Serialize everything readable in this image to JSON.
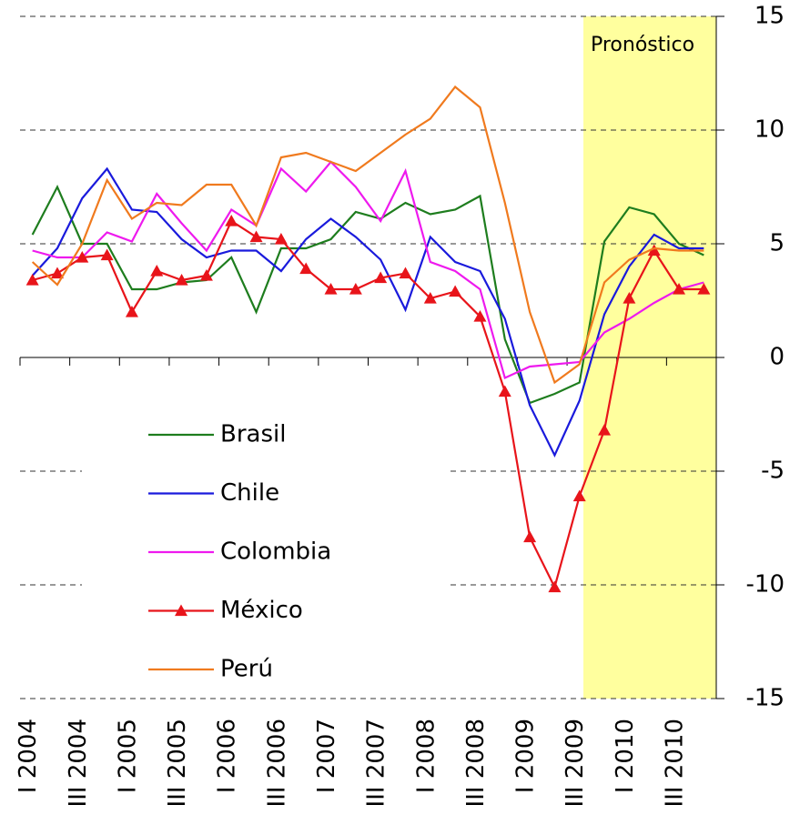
{
  "chart_data": {
    "type": "line",
    "annotations": [
      "Pronóstico"
    ],
    "categories": [
      "I 2004",
      null,
      "III 2004",
      null,
      "I 2005",
      null,
      "III 2005",
      null,
      "I 2006",
      null,
      "III 2006",
      null,
      "I 2007",
      null,
      "III 2007",
      null,
      "I 2008",
      null,
      "III 2008",
      null,
      "I 2009",
      null,
      "III 2009",
      null,
      "I 2010",
      null,
      "III 2010",
      null
    ],
    "series": [
      {
        "name": "Brasil",
        "color": "#1e7d1e",
        "values": [
          5.4,
          7.5,
          5.0,
          5.0,
          3.0,
          3.0,
          3.3,
          3.4,
          4.4,
          2.0,
          4.8,
          4.8,
          5.2,
          6.4,
          6.1,
          6.8,
          6.3,
          6.5,
          7.1,
          0.8,
          -2.0,
          -1.6,
          -1.1,
          5.1,
          6.6,
          6.3,
          5.0,
          4.5
        ]
      },
      {
        "name": "Chile",
        "color": "#1a1adc",
        "values": [
          3.6,
          4.8,
          7.0,
          8.3,
          6.5,
          6.4,
          5.2,
          4.4,
          4.7,
          4.7,
          3.8,
          5.2,
          6.1,
          5.3,
          4.3,
          2.1,
          5.3,
          4.2,
          3.8,
          1.7,
          -2.1,
          -4.3,
          -1.9,
          1.9,
          4.0,
          5.4,
          4.8,
          4.8
        ]
      },
      {
        "name": "Colombia",
        "color": "#ee1aee",
        "values": [
          4.7,
          4.4,
          4.4,
          5.5,
          5.1,
          7.2,
          5.9,
          4.7,
          6.5,
          5.8,
          8.3,
          7.3,
          8.6,
          7.5,
          6.0,
          8.2,
          4.2,
          3.8,
          3.0,
          -0.9,
          -0.4,
          -0.3,
          -0.2,
          1.1,
          1.7,
          2.4,
          3.0,
          3.3
        ]
      },
      {
        "name": "México",
        "color": "#e8141a",
        "marker": "triangle",
        "values": [
          3.4,
          3.7,
          4.4,
          4.5,
          2.0,
          3.8,
          3.4,
          3.6,
          6.0,
          5.3,
          5.2,
          3.9,
          3.0,
          3.0,
          3.5,
          3.7,
          2.6,
          2.9,
          1.8,
          -1.5,
          -7.9,
          -10.1,
          -6.1,
          -3.2,
          2.6,
          4.7,
          3.0,
          3.0
        ]
      },
      {
        "name": "Perú",
        "color": "#f07a1e",
        "values": [
          4.2,
          3.2,
          5.0,
          7.8,
          6.1,
          6.8,
          6.7,
          7.6,
          7.6,
          5.8,
          8.8,
          9.0,
          8.6,
          8.2,
          9.0,
          9.8,
          10.5,
          11.9,
          11.0,
          6.8,
          2.0,
          -1.1,
          -0.3,
          3.3,
          4.3,
          4.8,
          4.7,
          4.7
        ]
      }
    ],
    "ylim": [
      -15,
      15
    ],
    "yticks": [
      -15,
      -10,
      -5,
      0,
      5,
      10,
      15
    ],
    "grid": true
  }
}
